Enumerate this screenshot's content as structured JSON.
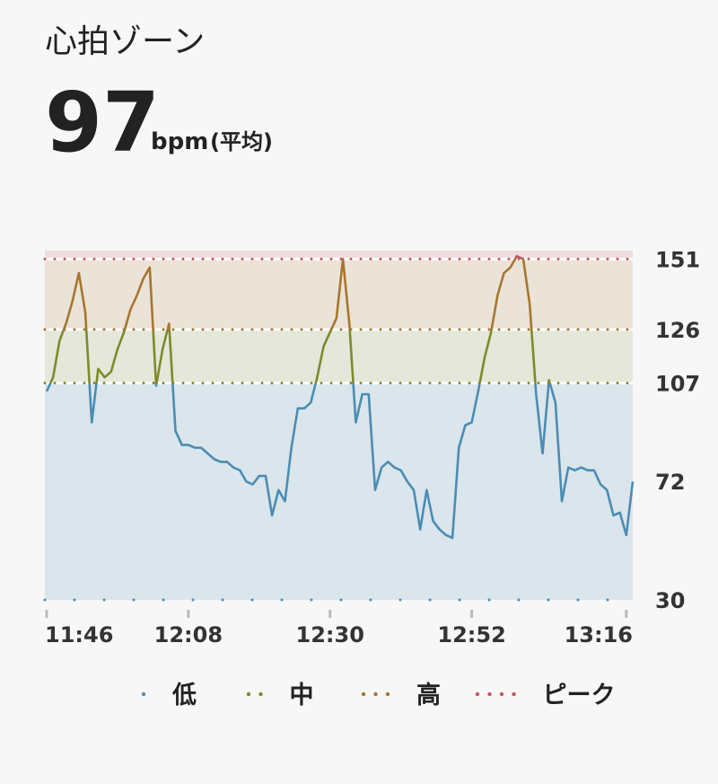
{
  "header": {
    "title": "心拍ゾーン",
    "value": 97,
    "unit": "bpm",
    "unit_note": "(平均)"
  },
  "chart_data": {
    "type": "line",
    "x": [
      "11:46",
      "11:47",
      "11:48",
      "11:49",
      "11:50",
      "11:51",
      "11:52",
      "11:53",
      "11:54",
      "11:55",
      "11:56",
      "11:57",
      "11:58",
      "11:59",
      "12:00",
      "12:01",
      "12:02",
      "12:03",
      "12:04",
      "12:05",
      "12:06",
      "12:07",
      "12:08",
      "12:09",
      "12:10",
      "12:11",
      "12:12",
      "12:13",
      "12:14",
      "12:15",
      "12:16",
      "12:17",
      "12:18",
      "12:19",
      "12:20",
      "12:21",
      "12:22",
      "12:23",
      "12:24",
      "12:25",
      "12:26",
      "12:27",
      "12:28",
      "12:29",
      "12:30",
      "12:31",
      "12:32",
      "12:33",
      "12:34",
      "12:35",
      "12:36",
      "12:37",
      "12:38",
      "12:39",
      "12:40",
      "12:41",
      "12:42",
      "12:43",
      "12:44",
      "12:45",
      "12:46",
      "12:47",
      "12:48",
      "12:49",
      "12:50",
      "12:51",
      "12:52",
      "12:53",
      "12:54",
      "12:55",
      "12:56",
      "12:57",
      "12:58",
      "12:59",
      "13:00",
      "13:01",
      "13:02",
      "13:03",
      "13:04",
      "13:05",
      "13:06",
      "13:07",
      "13:08",
      "13:09",
      "13:10",
      "13:11",
      "13:12",
      "13:13",
      "13:14",
      "13:15",
      "13:16",
      "13:17"
    ],
    "values": [
      104,
      109,
      122,
      128,
      136,
      146,
      132,
      93,
      112,
      109,
      111,
      119,
      125,
      133,
      138,
      144,
      148,
      106,
      119,
      128,
      90,
      85,
      85,
      84,
      84,
      82,
      80,
      79,
      79,
      77,
      76,
      72,
      71,
      74,
      74,
      60,
      69,
      65,
      84,
      98,
      98,
      100,
      109,
      120,
      125,
      130,
      151,
      128,
      93,
      103,
      103,
      69,
      77,
      79,
      77,
      76,
      72,
      69,
      55,
      69,
      58,
      55,
      53,
      52,
      84,
      92,
      93,
      104,
      116,
      125,
      138,
      146,
      148,
      152,
      151,
      135,
      103,
      82,
      108,
      100,
      65,
      77,
      76,
      77,
      76,
      76,
      71,
      69,
      60,
      61,
      53,
      72
    ],
    "xlim": [
      "11:46",
      "13:17"
    ],
    "xticks": [
      "11:46",
      "12:08",
      "12:30",
      "12:52",
      "13:16"
    ],
    "ylim": [
      30,
      154
    ],
    "yticks": [
      30,
      72,
      107,
      126,
      151
    ],
    "zones": [
      {
        "name": "低",
        "from": 30,
        "to": 107,
        "color": "#dae5ec",
        "line_color": "#4b8db3"
      },
      {
        "name": "中",
        "from": 107,
        "to": 126,
        "color": "#e4e7d9",
        "line_color": "#7f8a2c"
      },
      {
        "name": "高",
        "from": 126,
        "to": 151,
        "color": "#ebe3d7",
        "line_color": "#a8762f"
      },
      {
        "name": "ピーク",
        "from": 151,
        "to": 154,
        "color": "#f0dcdc",
        "line_color": "#c4575a"
      }
    ]
  }
}
